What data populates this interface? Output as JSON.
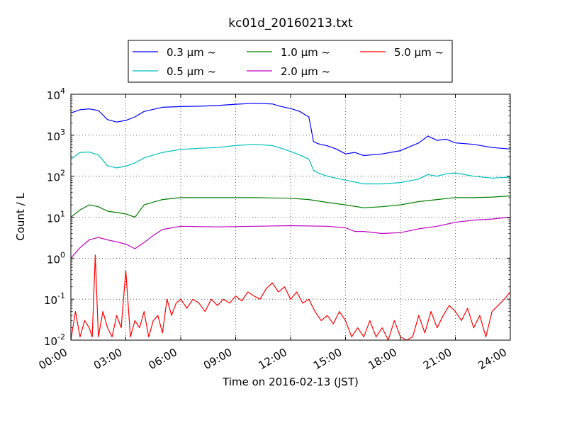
{
  "chart_data": {
    "type": "line",
    "title": "kc01d_20160213.txt",
    "xlabel": "Time on 2016-02-13 (JST)",
    "ylabel": "Count / L",
    "yscale": "log",
    "xlim": [
      "00:00",
      "24:00"
    ],
    "ylim": [
      0.01,
      10000
    ],
    "grid": true,
    "legend_position": "top",
    "x_ticks": [
      "00:00",
      "03:00",
      "06:00",
      "09:00",
      "12:00",
      "15:00",
      "18:00",
      "21:00",
      "24:00"
    ],
    "y_ticks": [
      {
        "base": "10",
        "exp": "-2"
      },
      {
        "base": "10",
        "exp": "-1"
      },
      {
        "base": "10",
        "exp": "0"
      },
      {
        "base": "10",
        "exp": "1"
      },
      {
        "base": "10",
        "exp": "2"
      },
      {
        "base": "10",
        "exp": "3"
      },
      {
        "base": "10",
        "exp": "4"
      }
    ],
    "series": [
      {
        "name": "0.3 μm ~",
        "color": "#0000ff",
        "x": [
          "00:00",
          "00:30",
          "01:00",
          "01:30",
          "02:00",
          "02:30",
          "03:00",
          "03:30",
          "04:00",
          "05:00",
          "06:00",
          "07:00",
          "08:00",
          "09:00",
          "10:00",
          "11:00",
          "11:30",
          "12:00",
          "12:30",
          "13:00",
          "13:15",
          "13:30",
          "14:00",
          "14:30",
          "15:00",
          "15:30",
          "16:00",
          "17:00",
          "18:00",
          "19:00",
          "19:30",
          "20:00",
          "20:30",
          "21:00",
          "22:00",
          "23:00",
          "24:00"
        ],
        "y": [
          3500,
          4200,
          4400,
          4000,
          2400,
          2100,
          2300,
          2800,
          3800,
          4800,
          5000,
          5100,
          5300,
          5700,
          6000,
          5800,
          5000,
          4500,
          3800,
          2800,
          700,
          620,
          550,
          460,
          350,
          380,
          320,
          350,
          420,
          650,
          950,
          750,
          800,
          650,
          600,
          500,
          460
        ]
      },
      {
        "name": "0.5 μm ~",
        "color": "#00bfbf",
        "x": [
          "00:00",
          "00:30",
          "01:00",
          "01:30",
          "02:00",
          "02:30",
          "03:00",
          "03:30",
          "04:00",
          "05:00",
          "06:00",
          "07:00",
          "08:00",
          "09:00",
          "10:00",
          "11:00",
          "11:30",
          "12:00",
          "12:30",
          "13:00",
          "13:15",
          "13:30",
          "14:00",
          "15:00",
          "16:00",
          "17:00",
          "18:00",
          "19:00",
          "19:30",
          "20:00",
          "20:30",
          "21:00",
          "22:00",
          "23:00",
          "24:00"
        ],
        "y": [
          260,
          380,
          390,
          330,
          180,
          160,
          175,
          210,
          280,
          380,
          450,
          480,
          500,
          560,
          600,
          560,
          480,
          400,
          330,
          260,
          140,
          120,
          100,
          80,
          65,
          65,
          70,
          85,
          110,
          100,
          115,
          120,
          100,
          90,
          95
        ]
      },
      {
        "name": "1.0 μm ~",
        "color": "#008000",
        "x": [
          "00:00",
          "00:30",
          "01:00",
          "01:30",
          "02:00",
          "02:30",
          "03:00",
          "03:30",
          "04:00",
          "05:00",
          "06:00",
          "08:00",
          "10:00",
          "12:00",
          "13:00",
          "14:00",
          "15:00",
          "16:00",
          "17:00",
          "18:00",
          "19:00",
          "20:00",
          "21:00",
          "22:00",
          "23:00",
          "24:00"
        ],
        "y": [
          10,
          15,
          20,
          18,
          14,
          13,
          12,
          10,
          20,
          27,
          30,
          30,
          30,
          29,
          27,
          23,
          20,
          17,
          18,
          20,
          24,
          27,
          30,
          30,
          31,
          33
        ]
      },
      {
        "name": "2.0 μm ~",
        "color": "#bf00bf",
        "x": [
          "00:00",
          "00:30",
          "01:00",
          "01:30",
          "02:00",
          "02:30",
          "03:00",
          "03:30",
          "04:00",
          "04:30",
          "05:00",
          "06:00",
          "08:00",
          "10:00",
          "12:00",
          "14:00",
          "15:00",
          "15:30",
          "16:00",
          "17:00",
          "18:00",
          "19:00",
          "20:00",
          "21:00",
          "22:00",
          "23:00",
          "24:00"
        ],
        "y": [
          1.0,
          1.8,
          2.8,
          3.2,
          2.8,
          2.5,
          2.2,
          1.7,
          2.4,
          3.6,
          5.0,
          6.0,
          5.8,
          6.0,
          6.2,
          6.0,
          5.5,
          4.5,
          4.5,
          4.0,
          4.2,
          5.2,
          6.0,
          7.5,
          8.5,
          9.0,
          10.0
        ]
      },
      {
        "name": "5.0 μm ~",
        "color": "#ff0000",
        "x": [
          "00:00",
          "00:15",
          "00:30",
          "00:45",
          "01:00",
          "01:10",
          "01:20",
          "01:30",
          "01:45",
          "02:00",
          "02:15",
          "02:30",
          "02:45",
          "03:00",
          "03:15",
          "03:30",
          "03:45",
          "04:00",
          "04:15",
          "04:30",
          "04:45",
          "05:00",
          "05:15",
          "05:30",
          "05:45",
          "06:00",
          "06:20",
          "06:40",
          "07:00",
          "07:20",
          "07:40",
          "08:00",
          "08:20",
          "08:40",
          "09:00",
          "09:20",
          "09:40",
          "10:00",
          "10:20",
          "10:40",
          "11:00",
          "11:20",
          "11:40",
          "12:00",
          "12:20",
          "12:40",
          "13:00",
          "13:20",
          "13:40",
          "14:00",
          "14:20",
          "14:40",
          "15:00",
          "15:20",
          "15:40",
          "16:00",
          "16:20",
          "16:40",
          "17:00",
          "17:20",
          "17:40",
          "18:00",
          "18:20",
          "18:40",
          "19:00",
          "19:20",
          "19:40",
          "20:00",
          "20:20",
          "20:40",
          "21:00",
          "21:20",
          "21:40",
          "22:00",
          "22:20",
          "22:40",
          "23:00",
          "23:20",
          "23:40",
          "24:00"
        ],
        "y": [
          0.01,
          0.05,
          0.012,
          0.03,
          0.02,
          0.012,
          1.2,
          0.012,
          0.05,
          0.02,
          0.012,
          0.04,
          0.02,
          0.5,
          0.012,
          0.03,
          0.02,
          0.05,
          0.012,
          0.03,
          0.04,
          0.015,
          0.1,
          0.04,
          0.08,
          0.1,
          0.06,
          0.1,
          0.08,
          0.05,
          0.1,
          0.07,
          0.1,
          0.08,
          0.12,
          0.09,
          0.15,
          0.12,
          0.1,
          0.18,
          0.25,
          0.15,
          0.2,
          0.1,
          0.15,
          0.08,
          0.1,
          0.05,
          0.03,
          0.04,
          0.025,
          0.05,
          0.03,
          0.012,
          0.02,
          0.012,
          0.03,
          0.012,
          0.02,
          0.01,
          0.03,
          0.012,
          0.01,
          0.012,
          0.04,
          0.015,
          0.05,
          0.02,
          0.04,
          0.07,
          0.05,
          0.03,
          0.06,
          0.02,
          0.04,
          0.012,
          0.05,
          0.07,
          0.1,
          0.15
        ]
      }
    ]
  }
}
